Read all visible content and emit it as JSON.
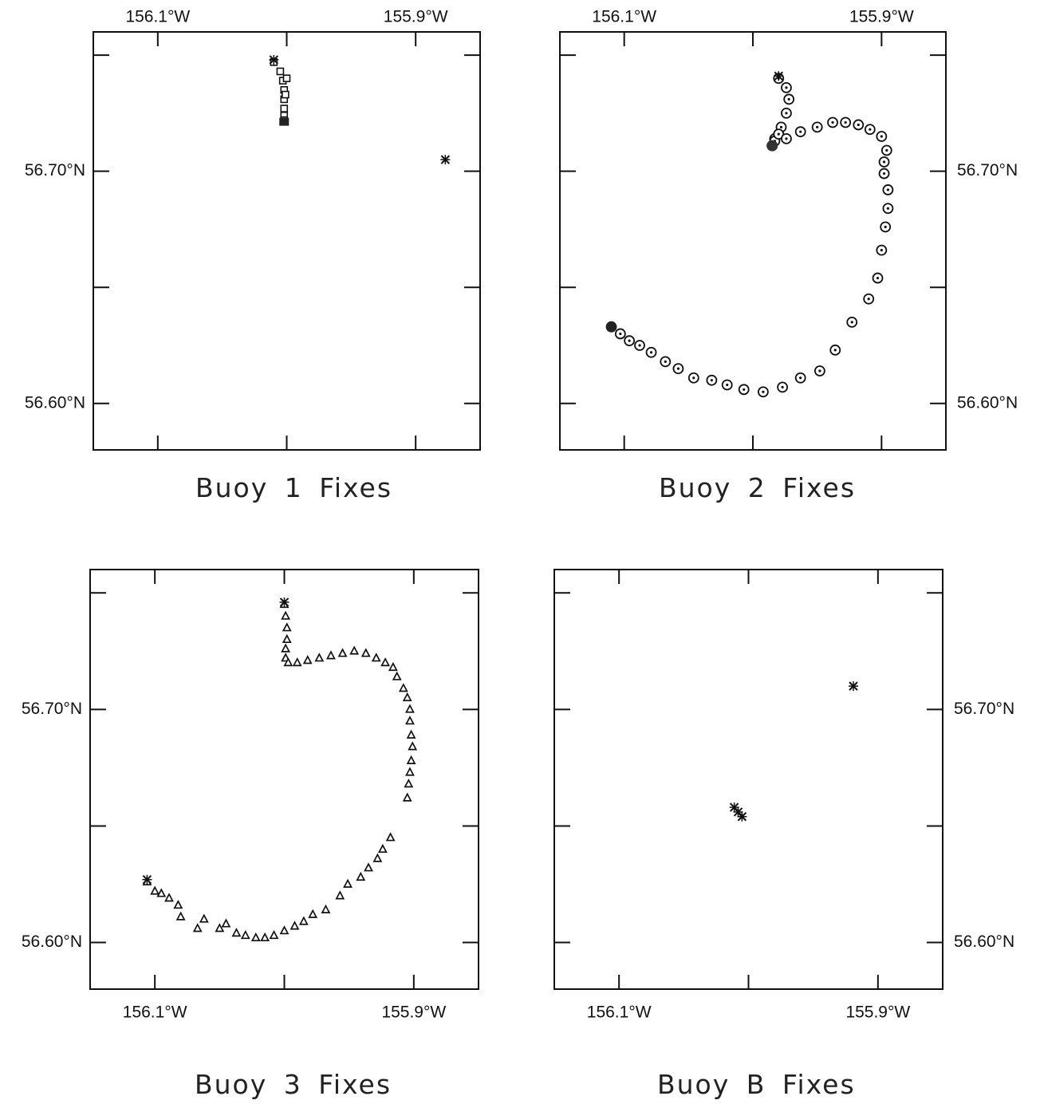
{
  "chart_data": [
    {
      "id": "buoy1",
      "type": "scatter",
      "title": "Buoy 1 Fixes",
      "marker": "square",
      "x_ticks": [
        "156.1°W",
        "155.9°W"
      ],
      "y_ticks": [
        "56.70°N",
        "56.60°N"
      ],
      "xlim": [
        -156.15,
        -155.85
      ],
      "ylim": [
        56.58,
        56.76
      ],
      "points": [
        [
          -156.01,
          56.747
        ],
        [
          -156.005,
          56.743
        ],
        [
          -156.003,
          56.739
        ],
        [
          -156.002,
          56.735
        ],
        [
          -156.002,
          56.731
        ],
        [
          -156.002,
          56.727
        ],
        [
          -156.002,
          56.724
        ],
        [
          -156.002,
          56.722
        ],
        [
          -156.0,
          56.74
        ],
        [
          -156.001,
          56.733
        ]
      ],
      "start": [
        -156.01,
        56.748
      ],
      "extra_marker": [
        -155.877,
        56.705
      ]
    },
    {
      "id": "buoy2",
      "type": "scatter",
      "title": "Buoy 2 Fixes",
      "marker": "circle-dot",
      "x_ticks": [
        "156.1°W",
        "155.9°W"
      ],
      "y_ticks": [
        "56.70°N",
        "56.60°N"
      ],
      "xlim": [
        -156.15,
        -155.85
      ],
      "ylim": [
        56.58,
        56.76
      ],
      "points": [
        [
          -155.98,
          56.74
        ],
        [
          -155.974,
          56.736
        ],
        [
          -155.972,
          56.731
        ],
        [
          -155.974,
          56.725
        ],
        [
          -155.978,
          56.719
        ],
        [
          -155.983,
          56.714
        ],
        [
          -155.985,
          56.711
        ],
        [
          -155.983,
          56.713
        ],
        [
          -155.98,
          56.716
        ],
        [
          -155.974,
          56.714
        ],
        [
          -155.963,
          56.717
        ],
        [
          -155.95,
          56.719
        ],
        [
          -155.938,
          56.721
        ],
        [
          -155.928,
          56.721
        ],
        [
          -155.918,
          56.72
        ],
        [
          -155.909,
          56.718
        ],
        [
          -155.9,
          56.715
        ],
        [
          -155.896,
          56.709
        ],
        [
          -155.898,
          56.704
        ],
        [
          -155.898,
          56.699
        ],
        [
          -155.895,
          56.692
        ],
        [
          -155.895,
          56.684
        ],
        [
          -155.897,
          56.676
        ],
        [
          -155.9,
          56.666
        ],
        [
          -155.903,
          56.654
        ],
        [
          -155.91,
          56.645
        ],
        [
          -155.923,
          56.635
        ],
        [
          -155.936,
          56.623
        ],
        [
          -155.948,
          56.614
        ],
        [
          -155.963,
          56.611
        ],
        [
          -155.977,
          56.607
        ],
        [
          -155.992,
          56.605
        ],
        [
          -156.007,
          56.606
        ],
        [
          -156.02,
          56.608
        ],
        [
          -156.032,
          56.61
        ],
        [
          -156.046,
          56.611
        ],
        [
          -156.058,
          56.615
        ],
        [
          -156.068,
          56.618
        ],
        [
          -156.079,
          56.622
        ],
        [
          -156.088,
          56.625
        ],
        [
          -156.096,
          56.627
        ],
        [
          -156.103,
          56.63
        ],
        [
          -156.11,
          56.633
        ]
      ],
      "start": [
        -155.98,
        56.741
      ],
      "end_cluster": [
        -156.11,
        56.633
      ]
    },
    {
      "id": "buoy3",
      "type": "scatter",
      "title": "Buoy 3 Fixes",
      "marker": "triangle",
      "x_ticks": [
        "156.1°W",
        "155.9°W"
      ],
      "y_ticks": [
        "56.70°N",
        "56.60°N"
      ],
      "xlim": [
        -156.15,
        -155.85
      ],
      "ylim": [
        56.58,
        56.76
      ],
      "points": [
        [
          -156.0,
          56.745
        ],
        [
          -155.999,
          56.74
        ],
        [
          -155.998,
          56.735
        ],
        [
          -155.998,
          56.73
        ],
        [
          -155.999,
          56.726
        ],
        [
          -155.999,
          56.722
        ],
        [
          -155.997,
          56.72
        ],
        [
          -155.99,
          56.72
        ],
        [
          -155.982,
          56.721
        ],
        [
          -155.973,
          56.722
        ],
        [
          -155.964,
          56.723
        ],
        [
          -155.955,
          56.724
        ],
        [
          -155.946,
          56.725
        ],
        [
          -155.937,
          56.724
        ],
        [
          -155.929,
          56.722
        ],
        [
          -155.922,
          56.72
        ],
        [
          -155.916,
          56.718
        ],
        [
          -155.913,
          56.714
        ],
        [
          -155.908,
          56.709
        ],
        [
          -155.905,
          56.705
        ],
        [
          -155.903,
          56.7
        ],
        [
          -155.903,
          56.695
        ],
        [
          -155.902,
          56.689
        ],
        [
          -155.901,
          56.684
        ],
        [
          -155.902,
          56.678
        ],
        [
          -155.903,
          56.673
        ],
        [
          -155.904,
          56.668
        ],
        [
          -155.905,
          56.662
        ],
        [
          -155.918,
          56.645
        ],
        [
          -155.924,
          56.64
        ],
        [
          -155.928,
          56.636
        ],
        [
          -155.935,
          56.632
        ],
        [
          -155.941,
          56.628
        ],
        [
          -155.951,
          56.625
        ],
        [
          -155.957,
          56.62
        ],
        [
          -155.968,
          56.614
        ],
        [
          -155.978,
          56.612
        ],
        [
          -155.985,
          56.609
        ],
        [
          -155.992,
          56.607
        ],
        [
          -156.0,
          56.605
        ],
        [
          -156.008,
          56.603
        ],
        [
          -156.015,
          56.602
        ],
        [
          -156.022,
          56.602
        ],
        [
          -156.03,
          56.603
        ],
        [
          -156.037,
          56.604
        ],
        [
          -156.045,
          56.608
        ],
        [
          -156.05,
          56.606
        ],
        [
          -156.062,
          56.61
        ],
        [
          -156.067,
          56.606
        ],
        [
          -156.08,
          56.611
        ],
        [
          -156.082,
          56.616
        ],
        [
          -156.089,
          56.619
        ],
        [
          -156.095,
          56.621
        ],
        [
          -156.1,
          56.622
        ],
        [
          -156.106,
          56.626
        ]
      ],
      "start": [
        -156.0,
        56.746
      ],
      "end_start": [
        -156.106,
        56.627
      ]
    },
    {
      "id": "buoyB",
      "type": "scatter",
      "title": "Buoy B Fixes",
      "marker": "cross",
      "x_ticks": [
        "156.1°W",
        "155.9°W"
      ],
      "y_ticks": [
        "56.70°N",
        "56.60°N"
      ],
      "xlim": [
        -156.15,
        -155.85
      ],
      "ylim": [
        56.58,
        56.76
      ],
      "points": [
        [
          -155.919,
          56.71
        ],
        [
          -156.011,
          56.658
        ],
        [
          -156.008,
          56.656
        ],
        [
          -156.005,
          56.654
        ]
      ]
    }
  ]
}
